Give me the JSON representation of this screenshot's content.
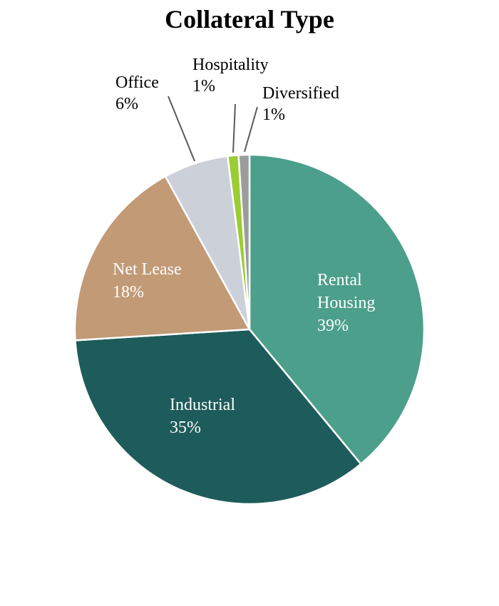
{
  "chart_data": {
    "type": "pie",
    "title": "Collateral Type",
    "slices": [
      {
        "label": [
          "Rental",
          "Housing"
        ],
        "pct_text": "39%",
        "value": 39,
        "color": "#4c9f8b",
        "label_color": "#ffffff",
        "label_placement": "inside"
      },
      {
        "label": [
          "Industrial"
        ],
        "pct_text": "35%",
        "value": 35,
        "color": "#1d5c5a",
        "label_color": "#ffffff",
        "label_placement": "inside"
      },
      {
        "label": [
          "Net Lease"
        ],
        "pct_text": "18%",
        "value": 18,
        "color": "#c29a76",
        "label_color": "#ffffff",
        "label_placement": "inside"
      },
      {
        "label": [
          "Office"
        ],
        "pct_text": "6%",
        "value": 6,
        "color": "#ccd0d9",
        "label_color": "#000000",
        "label_placement": "outside"
      },
      {
        "label": [
          "Hospitality"
        ],
        "pct_text": "1%",
        "value": 1,
        "color": "#9acd32",
        "label_color": "#000000",
        "label_placement": "outside"
      },
      {
        "label": [
          "Diversified"
        ],
        "pct_text": "1%",
        "value": 1,
        "color": "#9c9c9c",
        "label_color": "#000000",
        "label_placement": "outside"
      }
    ],
    "legend": "none"
  }
}
